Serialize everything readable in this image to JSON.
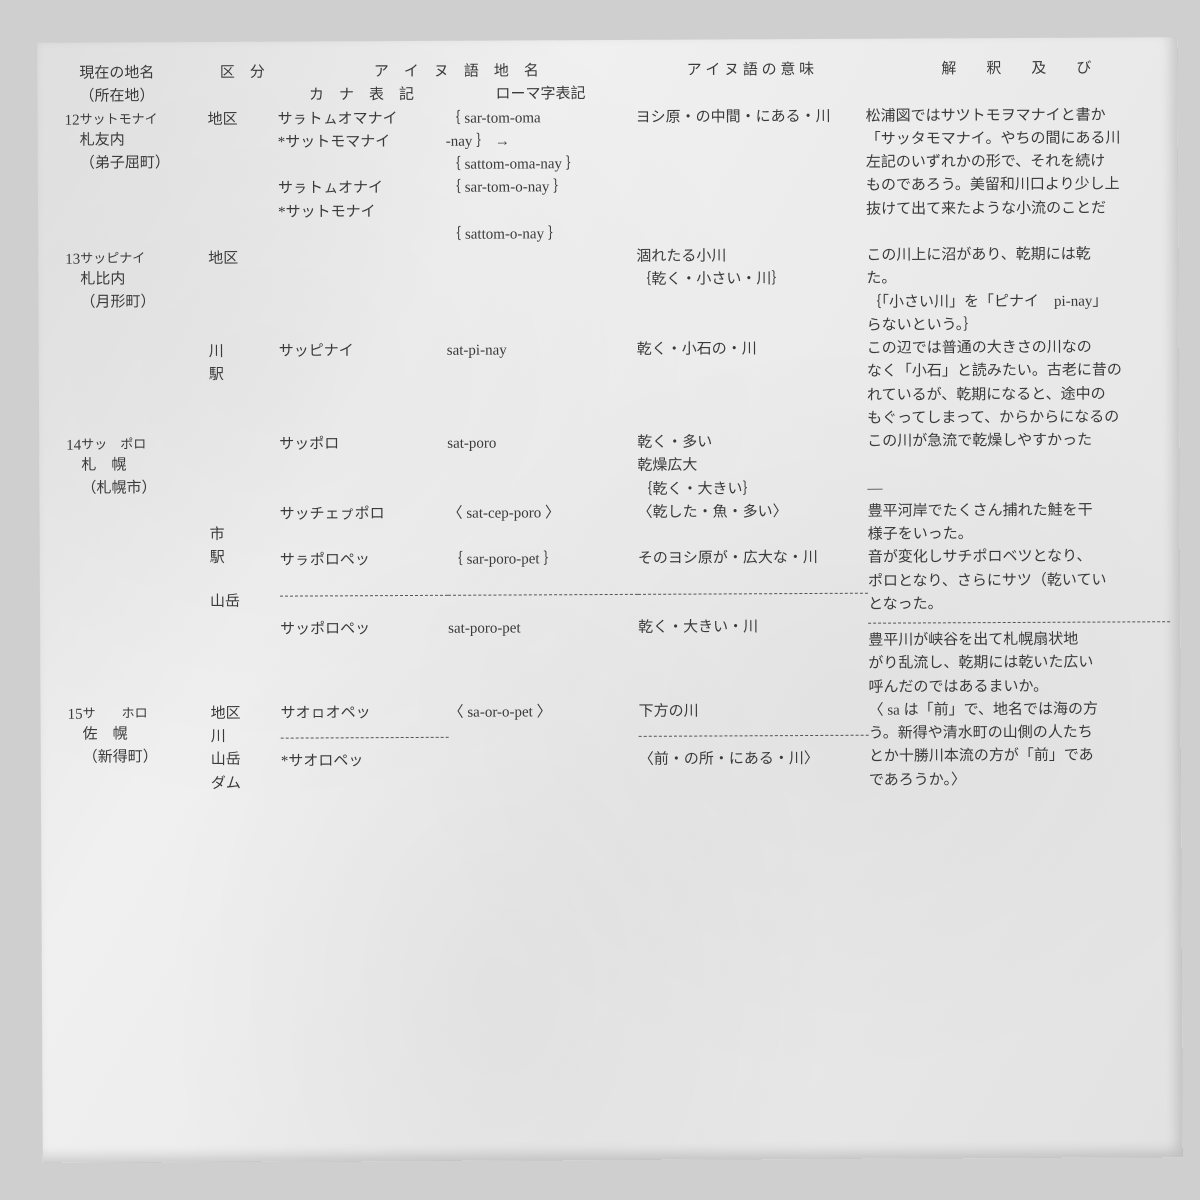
{
  "columns": {
    "num_width": 22,
    "name_width": 128,
    "kubun_width": 70,
    "kana_width": 168,
    "roma_width": 190,
    "meaning_width": 230,
    "interp_width": 302
  },
  "headers": {
    "current_name_top": "現在の地名",
    "current_name_bottom": "（所在地）",
    "kubun": "区　分",
    "ainu_group": "ア　イ　ヌ　語　地　名",
    "kana": "カ　ナ　表　記",
    "roma": "ローマ字表記",
    "meaning": "ア イ ヌ 語 の 意 味",
    "interp": "解　　釈　　及　　び"
  },
  "rows": {
    "r12": {
      "num": "12",
      "place_kana": "サットモナイ",
      "place_name": "札友内",
      "place_loc": "（弟子屈町）",
      "kubun": "地区",
      "kana_a": "サㇻトㇺオマナイ\n*サットモマナイ",
      "roma_a": "｛ sar-tom-oma\n  -nay ｝ →\n｛ sattom-oma-nay ｝",
      "kana_b": "サㇻトㇺオナイ\n*サットモナイ",
      "roma_b": "｛ sar-tom-o-nay ｝\n\n｛ sattom-o-nay ｝",
      "meaning": "ヨシ原・の中間・にある・川",
      "interp": "松浦図ではサツトモヲマナイと書か\n「サッタモマナイ。やちの間にある川\n左記のいずれかの形で、それを続け\nものであろう。美留和川口より少し上\n抜けて出て来たような小流のことだ"
    },
    "r13": {
      "num": "13",
      "place_kana": "サッピナイ",
      "place_name": "札比内",
      "place_loc": "（月形町）",
      "kubun1": "地区",
      "kubun2": "川",
      "kubun3": "駅",
      "kana": "サッピナイ",
      "roma": "sat-pi-nay",
      "meaning_a": "涸れたる小川\n｛乾く・小さい・川｝",
      "meaning_b": "乾く・小石の・川",
      "interp_a": "この川上に沼があり、乾期には乾\nた。\n｛「小さい川」を「ピナイ　pi-nay」\nらないという。｝",
      "interp_b": "この辺では普通の大きさの川なの\nなく「小石」と読みたい。古老に昔の\nれているが、乾期になると、途中の\nもぐってしまって、からからになるの"
    },
    "r14": {
      "num": "14",
      "place_kana": "サッ　ポロ",
      "place_name": "札　幌",
      "place_loc": "（札幌市）",
      "kubun1": "市",
      "kubun2": "駅",
      "kubun3": "山岳",
      "sub_a_kana": "サッポロ",
      "sub_a_roma": "sat-poro",
      "sub_a_meaning1": "乾く・多い",
      "sub_a_meaning2": "乾燥広大\n｛乾く・大きい｝",
      "sub_a_interp": "この川が急流で乾燥しやすかった\n\n—",
      "sub_b_kana": "サッチェㇷ゚ポロ",
      "sub_b_roma": "〈 sat-cep-poro 〉",
      "sub_b_meaning": "〈乾した・魚・多い〉",
      "sub_b_interp": "豊平河岸でたくさん捕れた鮭を干\n様子をいった。",
      "sub_c_kana": "サㇻポロペッ",
      "sub_c_roma": "｛ sar-poro-pet ｝",
      "sub_c_meaning": "そのヨシ原が・広大な・川",
      "sub_c_interp": "音が変化しサチポロベツとなり、\nポロとなり、さらにサツ（乾いてい\nとなった。",
      "sub_d_kana": "サッポロペッ",
      "sub_d_roma": "sat-poro-pet",
      "sub_d_meaning": "乾く・大きい・川",
      "sub_d_interp": "豊平川が峡谷を出て札幌扇状地\nがり乱流し、乾期には乾いた広い\n呼んだのではあるまいか。"
    },
    "r15": {
      "num": "15",
      "place_kana": "サ　　ホロ",
      "place_name": "佐　幌",
      "place_loc": "（新得町）",
      "kubun": "地区\n川\n山岳\nダム",
      "kana_a": "サオㇿオペッ",
      "kana_b": "*サオロペッ",
      "roma": "〈 sa-or-o-pet 〉",
      "meaning_a": "下方の川",
      "meaning_b": "〈前・の所・にある・川〉",
      "interp": "〈 sa は「前」で、地名では海の方\nう。新得や清水町の山側の人たち\nとか十勝川本流の方が「前」であ\nであろうか。〉"
    }
  }
}
